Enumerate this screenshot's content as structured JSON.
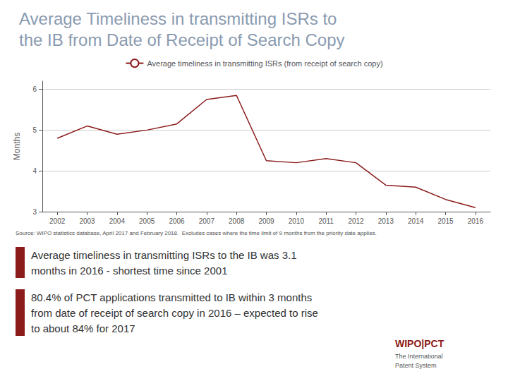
{
  "chart_data": {
    "type": "line",
    "title": "Average Timeliness in transmitting ISRs to\nthe IB from Date of Receipt of Search Copy",
    "ylabel": "Months",
    "x": [
      2002,
      2003,
      2004,
      2005,
      2006,
      2007,
      2008,
      2009,
      2010,
      2011,
      2012,
      2013,
      2014,
      2015,
      2016
    ],
    "series": [
      {
        "name": "Average timeliness in transmitting ISRs (from receipt of search copy)",
        "color": "#8B1A1A",
        "values": [
          4.8,
          5.1,
          4.9,
          5.0,
          5.15,
          5.75,
          5.85,
          4.25,
          4.2,
          4.3,
          4.2,
          3.65,
          3.6,
          3.3,
          3.1
        ]
      }
    ],
    "xlim": [
      2001.5,
      2016.5
    ],
    "xticks": [
      2002,
      2003,
      2004,
      2005,
      2006,
      2007,
      2008,
      2009,
      2010,
      2011,
      2012,
      2013,
      2014,
      2015,
      2016
    ],
    "ylim": [
      3,
      6.2
    ],
    "yticks": [
      3,
      4,
      5,
      6
    ],
    "grid": true,
    "legend": "top",
    "annotations": [
      "Source: WIPO statistics database, April 2017 and February 2018.  Excludes cases where the time limit of 9 months from the priority date applies.",
      "Average timeliness in transmitting ISRs to the IB was 3.1\nmonths in 2016 - shortest time since 2001",
      "80.4% of PCT applications transmitted to IB within 3 months\nfrom date of receipt of search copy in 2016 – expected to rise\nto about 84% for 2017",
      "WIPO|PCT",
      "The International",
      "Patent System"
    ]
  }
}
